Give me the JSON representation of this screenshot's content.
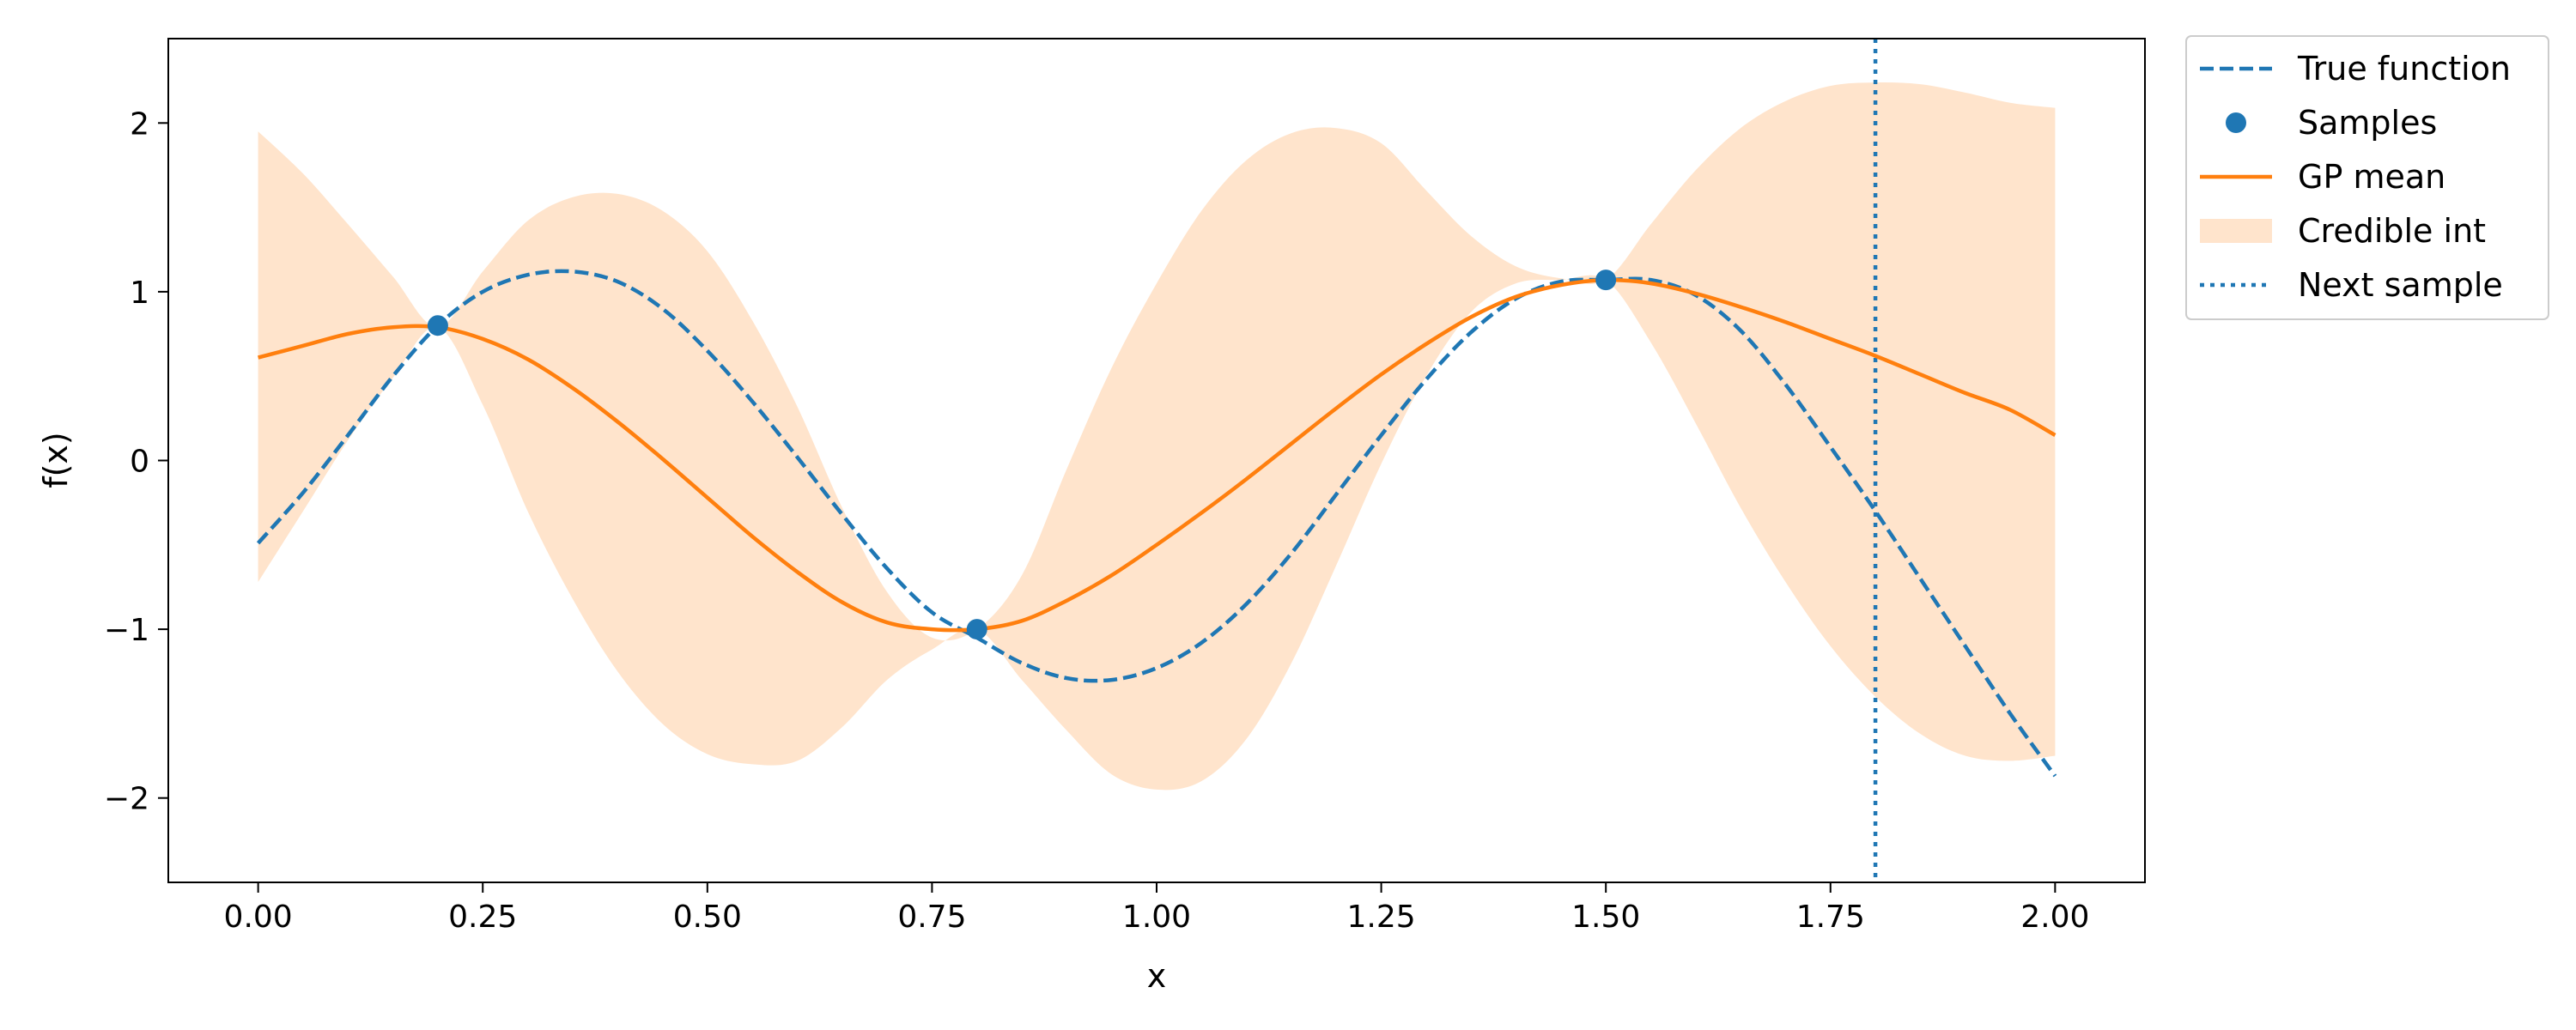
{
  "chart_data": {
    "type": "line",
    "title": "",
    "xlabel": "x",
    "ylabel": "f(x)",
    "xlim": [
      -0.1,
      2.1
    ],
    "ylim": [
      -2.5,
      2.5
    ],
    "grid": false,
    "legend_placement": "outside-top-right",
    "xticks": [
      0.0,
      0.25,
      0.5,
      0.75,
      1.0,
      1.25,
      1.5,
      1.75,
      2.0
    ],
    "xtick_labels": [
      "0.00",
      "0.25",
      "0.50",
      "0.75",
      "1.00",
      "1.25",
      "1.50",
      "1.75",
      "2.00"
    ],
    "yticks": [
      -2,
      -1,
      0,
      1,
      2
    ],
    "ytick_labels": [
      "−2",
      "−1",
      "0",
      "1",
      "2"
    ],
    "colors": {
      "true_function": "#1f77b4",
      "samples": "#1f77b4",
      "gp_mean": "#ff7f0e",
      "credible_int": "#ffe4cc",
      "next_sample": "#1f77b4"
    },
    "legend": [
      {
        "key": "true_function",
        "label": "True function",
        "style": "dashed-line"
      },
      {
        "key": "samples",
        "label": "Samples",
        "style": "marker"
      },
      {
        "key": "gp_mean",
        "label": "GP mean",
        "style": "solid-line"
      },
      {
        "key": "credible_int",
        "label": "Credible int",
        "style": "patch"
      },
      {
        "key": "next_sample",
        "label": "Next sample",
        "style": "dotted-line"
      }
    ],
    "series": [
      {
        "name": "True function",
        "x": [
          0.0,
          0.05,
          0.1,
          0.15,
          0.2,
          0.25,
          0.3,
          0.35,
          0.4,
          0.45,
          0.5,
          0.55,
          0.6,
          0.65,
          0.7,
          0.75,
          0.8,
          0.85,
          0.9,
          0.95,
          1.0,
          1.05,
          1.1,
          1.15,
          1.2,
          1.25,
          1.3,
          1.35,
          1.4,
          1.45,
          1.5,
          1.55,
          1.6,
          1.65,
          1.7,
          1.75,
          1.8,
          1.85,
          1.9,
          1.95,
          2.0
        ],
        "y": [
          -0.49,
          -0.19,
          0.15,
          0.5,
          0.8,
          1.0,
          1.1,
          1.12,
          1.06,
          0.9,
          0.65,
          0.35,
          0.02,
          -0.32,
          -0.64,
          -0.9,
          -1.05,
          -1.2,
          -1.29,
          -1.3,
          -1.23,
          -1.08,
          -0.85,
          -0.55,
          -0.2,
          0.15,
          0.48,
          0.76,
          0.96,
          1.06,
          1.07,
          1.07,
          0.98,
          0.77,
          0.45,
          0.08,
          -0.3,
          -0.7,
          -1.1,
          -1.5,
          -1.87
        ]
      },
      {
        "name": "Samples",
        "x": [
          0.2,
          0.8,
          1.5
        ],
        "y": [
          0.8,
          -1.0,
          1.07
        ]
      },
      {
        "name": "GP mean",
        "x": [
          0.0,
          0.05,
          0.1,
          0.15,
          0.2,
          0.25,
          0.3,
          0.35,
          0.4,
          0.45,
          0.5,
          0.55,
          0.6,
          0.65,
          0.7,
          0.75,
          0.8,
          0.85,
          0.9,
          0.95,
          1.0,
          1.05,
          1.1,
          1.15,
          1.2,
          1.25,
          1.3,
          1.35,
          1.4,
          1.45,
          1.5,
          1.55,
          1.6,
          1.65,
          1.7,
          1.75,
          1.8,
          1.85,
          1.9,
          1.95,
          2.0
        ],
        "y": [
          0.61,
          0.68,
          0.75,
          0.79,
          0.79,
          0.72,
          0.6,
          0.43,
          0.23,
          0.01,
          -0.22,
          -0.45,
          -0.66,
          -0.84,
          -0.96,
          -1.0,
          -1.0,
          -0.95,
          -0.83,
          -0.68,
          -0.5,
          -0.31,
          -0.11,
          0.1,
          0.31,
          0.51,
          0.69,
          0.85,
          0.97,
          1.04,
          1.07,
          1.05,
          0.99,
          0.91,
          0.82,
          0.72,
          0.62,
          0.51,
          0.4,
          0.3,
          0.15
        ]
      },
      {
        "name": "Credible int",
        "x": [
          0.0,
          0.05,
          0.1,
          0.15,
          0.2,
          0.25,
          0.3,
          0.35,
          0.4,
          0.45,
          0.5,
          0.55,
          0.6,
          0.65,
          0.7,
          0.75,
          0.8,
          0.85,
          0.9,
          0.95,
          1.0,
          1.05,
          1.1,
          1.15,
          1.2,
          1.25,
          1.3,
          1.35,
          1.4,
          1.45,
          1.5,
          1.55,
          1.6,
          1.65,
          1.7,
          1.75,
          1.8,
          1.85,
          1.9,
          1.95,
          2.0
        ],
        "lower": [
          -0.72,
          -0.3,
          0.12,
          0.49,
          0.79,
          0.33,
          -0.3,
          -0.82,
          -1.25,
          -1.56,
          -1.74,
          -1.8,
          -1.78,
          -1.58,
          -1.3,
          -1.12,
          -1.0,
          -1.3,
          -1.6,
          -1.86,
          -1.95,
          -1.9,
          -1.65,
          -1.2,
          -0.62,
          -0.02,
          0.5,
          0.88,
          1.05,
          1.07,
          1.07,
          0.7,
          0.22,
          -0.28,
          -0.72,
          -1.1,
          -1.4,
          -1.62,
          -1.75,
          -1.78,
          -1.75
        ],
        "upper": [
          1.95,
          1.7,
          1.4,
          1.09,
          0.79,
          1.12,
          1.42,
          1.56,
          1.58,
          1.48,
          1.24,
          0.83,
          0.32,
          -0.28,
          -0.78,
          -1.05,
          -1.0,
          -0.68,
          -0.05,
          0.55,
          1.05,
          1.48,
          1.78,
          1.94,
          1.97,
          1.88,
          1.6,
          1.33,
          1.15,
          1.08,
          1.07,
          1.4,
          1.72,
          1.97,
          2.13,
          2.22,
          2.24,
          2.23,
          2.18,
          2.12,
          2.09
        ]
      },
      {
        "name": "Next sample",
        "x_value": 1.8
      }
    ]
  }
}
